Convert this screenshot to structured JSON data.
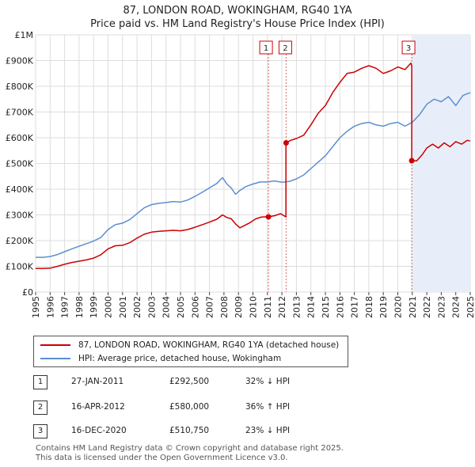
{
  "title_line1": "87, LONDON ROAD, WOKINGHAM, RG40 1YA",
  "title_line2": "Price paid vs. HM Land Registry's House Price Index (HPI)",
  "colors": {
    "price": "#cc0000",
    "hpi": "#5b8fd1",
    "highlight": "#e8eef9",
    "grid": "#dddddd"
  },
  "chart_data": {
    "type": "line",
    "xlim": [
      1995,
      2025
    ],
    "ylim": [
      0,
      1000000
    ],
    "x_ticks": [
      "1995",
      "1996",
      "1997",
      "1998",
      "1999",
      "2000",
      "2001",
      "2002",
      "2003",
      "2004",
      "2005",
      "2006",
      "2007",
      "2008",
      "2009",
      "2010",
      "2011",
      "2012",
      "2013",
      "2014",
      "2015",
      "2016",
      "2017",
      "2018",
      "2019",
      "2020",
      "2021",
      "2022",
      "2023",
      "2024",
      "2025"
    ],
    "y_ticks": [
      {
        "label": "£0",
        "value": 0
      },
      {
        "label": "£100K",
        "value": 100000
      },
      {
        "label": "£200K",
        "value": 200000
      },
      {
        "label": "£300K",
        "value": 300000
      },
      {
        "label": "£400K",
        "value": 400000
      },
      {
        "label": "£500K",
        "value": 500000
      },
      {
        "label": "£600K",
        "value": 600000
      },
      {
        "label": "£700K",
        "value": 700000
      },
      {
        "label": "£800K",
        "value": 800000
      },
      {
        "label": "£900K",
        "value": 900000
      },
      {
        "label": "£1M",
        "value": 1000000
      }
    ],
    "highlight_range": [
      2021.0,
      2025.0
    ],
    "series": [
      {
        "name": "87, LONDON ROAD, WOKINGHAM, RG40 1YA (detached house)",
        "color": "#cc0000",
        "x": [
          1995.0,
          1995.5,
          1996.0,
          1996.5,
          1997.0,
          1997.5,
          1998.0,
          1998.5,
          1999.0,
          1999.5,
          2000.0,
          2000.5,
          2001.0,
          2001.5,
          2002.0,
          2002.5,
          2003.0,
          2003.5,
          2004.0,
          2004.5,
          2005.0,
          2005.5,
          2006.0,
          2006.5,
          2007.0,
          2007.5,
          2007.9,
          2008.2,
          2008.5,
          2008.8,
          2009.1,
          2009.4,
          2009.8,
          2010.2,
          2010.6,
          2011.07,
          2011.5,
          2011.9,
          2012.28,
          2012.28,
          2012.6,
          2013.0,
          2013.5,
          2014.0,
          2014.5,
          2015.0,
          2015.5,
          2016.0,
          2016.5,
          2017.0,
          2017.5,
          2018.0,
          2018.5,
          2019.0,
          2019.5,
          2020.0,
          2020.5,
          2020.9,
          2020.96,
          2020.96,
          2021.3,
          2021.7,
          2022.0,
          2022.4,
          2022.8,
          2023.2,
          2023.6,
          2024.0,
          2024.4,
          2024.8,
          2025.0
        ],
        "y": [
          92000,
          92000,
          93000,
          100000,
          108000,
          115000,
          120000,
          125000,
          132000,
          145000,
          168000,
          180000,
          182000,
          192000,
          210000,
          225000,
          233000,
          236000,
          238000,
          240000,
          238000,
          243000,
          252000,
          262000,
          272000,
          283000,
          300000,
          290000,
          285000,
          265000,
          250000,
          258000,
          270000,
          285000,
          292000,
          292500,
          297000,
          305000,
          292000,
          580000,
          590000,
          597000,
          610000,
          650000,
          695000,
          725000,
          775000,
          815000,
          850000,
          855000,
          870000,
          880000,
          870000,
          850000,
          860000,
          875000,
          865000,
          890000,
          880000,
          510750,
          510000,
          535000,
          560000,
          575000,
          560000,
          580000,
          565000,
          585000,
          575000,
          590000,
          587000
        ]
      },
      {
        "name": "HPI: Average price, detached house, Wokingham",
        "color": "#5b8fd1",
        "x": [
          1995.0,
          1995.5,
          1996.0,
          1996.5,
          1997.0,
          1997.5,
          1998.0,
          1998.5,
          1999.0,
          1999.5,
          2000.0,
          2000.5,
          2001.0,
          2001.5,
          2002.0,
          2002.5,
          2003.0,
          2003.5,
          2004.0,
          2004.5,
          2005.0,
          2005.5,
          2006.0,
          2006.5,
          2007.0,
          2007.5,
          2007.9,
          2008.2,
          2008.5,
          2008.8,
          2009.1,
          2009.5,
          2010.0,
          2010.5,
          2011.0,
          2011.5,
          2012.0,
          2012.5,
          2013.0,
          2013.5,
          2014.0,
          2014.5,
          2015.0,
          2015.5,
          2016.0,
          2016.5,
          2017.0,
          2017.5,
          2018.0,
          2018.5,
          2019.0,
          2019.5,
          2020.0,
          2020.5,
          2021.0,
          2021.5,
          2022.0,
          2022.5,
          2023.0,
          2023.5,
          2024.0,
          2024.5,
          2025.0
        ],
        "y": [
          135000,
          135000,
          138000,
          146000,
          157000,
          168000,
          178000,
          188000,
          198000,
          212000,
          243000,
          262000,
          268000,
          282000,
          305000,
          328000,
          340000,
          345000,
          348000,
          352000,
          350000,
          358000,
          372000,
          388000,
          405000,
          422000,
          445000,
          420000,
          405000,
          380000,
          395000,
          410000,
          420000,
          428000,
          428000,
          432000,
          427000,
          430000,
          440000,
          455000,
          480000,
          505000,
          530000,
          565000,
          600000,
          625000,
          645000,
          655000,
          660000,
          650000,
          645000,
          655000,
          660000,
          645000,
          660000,
          690000,
          730000,
          750000,
          740000,
          760000,
          725000,
          765000,
          775000
        ]
      }
    ],
    "sales": [
      {
        "label": "1",
        "x": 2011.07,
        "y": 292500
      },
      {
        "label": "2",
        "x": 2012.29,
        "y": 580000
      },
      {
        "label": "3",
        "x": 2020.96,
        "y": 510750
      }
    ]
  },
  "legend": {
    "price_label": "87, LONDON ROAD, WOKINGHAM, RG40 1YA (detached house)",
    "hpi_label": "HPI: Average price, detached house, Wokingham"
  },
  "transactions": [
    {
      "num": "1",
      "date": "27-JAN-2011",
      "price": "£292,500",
      "hpi": "32% ↓ HPI"
    },
    {
      "num": "2",
      "date": "16-APR-2012",
      "price": "£580,000",
      "hpi": "36% ↑ HPI"
    },
    {
      "num": "3",
      "date": "16-DEC-2020",
      "price": "£510,750",
      "hpi": "23% ↓ HPI"
    }
  ],
  "footer": {
    "line1": "Contains HM Land Registry data © Crown copyright and database right 2025.",
    "line2": "This data is licensed under the Open Government Licence v3.0."
  }
}
